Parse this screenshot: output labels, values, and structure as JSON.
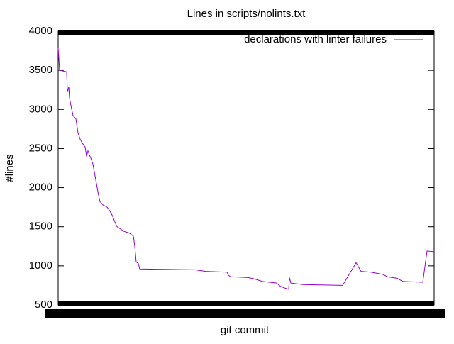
{
  "chart_data": {
    "type": "line",
    "title": "Lines in scripts/nolints.txt",
    "xlabel": "git commit",
    "ylabel": "#lines",
    "x": [
      0,
      2,
      12,
      13,
      15,
      16,
      18,
      21,
      25,
      28,
      31,
      34,
      38,
      40,
      42,
      44,
      46,
      49,
      51,
      54,
      57,
      59,
      63,
      69,
      73,
      76,
      80,
      83,
      88,
      93,
      100,
      106,
      108,
      110,
      113,
      115,
      193,
      208,
      238,
      240,
      243,
      268,
      278,
      288,
      298,
      308,
      313,
      318,
      325,
      326,
      328,
      345,
      401,
      420,
      427,
      441,
      458,
      464,
      478,
      486,
      514,
      520,
      530
    ],
    "series": [
      {
        "name": "declarations with linter failures",
        "color": "#9400d3",
        "values": [
          3790,
          3500,
          3480,
          3220,
          3290,
          3150,
          3050,
          2920,
          2880,
          2700,
          2620,
          2570,
          2520,
          2400,
          2470,
          2420,
          2380,
          2300,
          2200,
          2050,
          1900,
          1820,
          1780,
          1750,
          1700,
          1650,
          1560,
          1500,
          1470,
          1440,
          1420,
          1380,
          1250,
          1050,
          1030,
          960,
          950,
          930,
          920,
          880,
          860,
          850,
          830,
          800,
          790,
          780,
          740,
          720,
          700,
          850,
          780,
          760,
          750,
          1040,
          930,
          920,
          890,
          860,
          840,
          800,
          790,
          1190,
          1180
        ]
      }
    ],
    "xlim": [
      0,
      530
    ],
    "ylim": [
      500,
      4000
    ],
    "yticks": [
      500,
      1000,
      1500,
      2000,
      2500,
      3000,
      3500,
      4000
    ],
    "legend": "top-right"
  }
}
